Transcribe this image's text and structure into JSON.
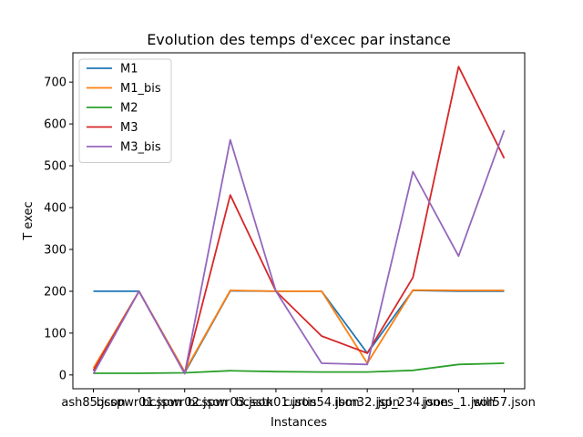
{
  "chart_data": {
    "type": "line",
    "title": "Evolution des temps d'excec par instance",
    "xlabel": "Instances",
    "ylabel": "T exec",
    "categories": [
      "ash85.json",
      "bcspwr01.json",
      "bcspwr02.json",
      "bcspwr03.json",
      "bcsstk01.json",
      "curtis54.json",
      "ibm32.json",
      "jgl_234.json",
      "jones_1.json",
      "will57.json"
    ],
    "ylim": [
      -33,
      770
    ],
    "yticks": [
      0,
      100,
      200,
      300,
      400,
      500,
      600,
      700
    ],
    "grid": false,
    "legend_position": "top-left",
    "series": [
      {
        "name": "M1",
        "color": "#1f77b4",
        "values": [
          200,
          200,
          5,
          201,
          200,
          200,
          52,
          202,
          200,
          200
        ]
      },
      {
        "name": "M1_bis",
        "color": "#ff7f0e",
        "values": [
          16,
          200,
          8,
          202,
          200,
          200,
          28,
          203,
          202,
          202
        ]
      },
      {
        "name": "M2",
        "color": "#2ca02c",
        "values": [
          4,
          4,
          5,
          10,
          8,
          7,
          7,
          11,
          25,
          28
        ]
      },
      {
        "name": "M3",
        "color": "#d62728",
        "values": [
          10,
          200,
          4,
          430,
          200,
          93,
          52,
          233,
          737,
          518
        ]
      },
      {
        "name": "M3_bis",
        "color": "#9467bd",
        "values": [
          3,
          200,
          3,
          562,
          200,
          28,
          25,
          486,
          284,
          585
        ]
      }
    ]
  }
}
